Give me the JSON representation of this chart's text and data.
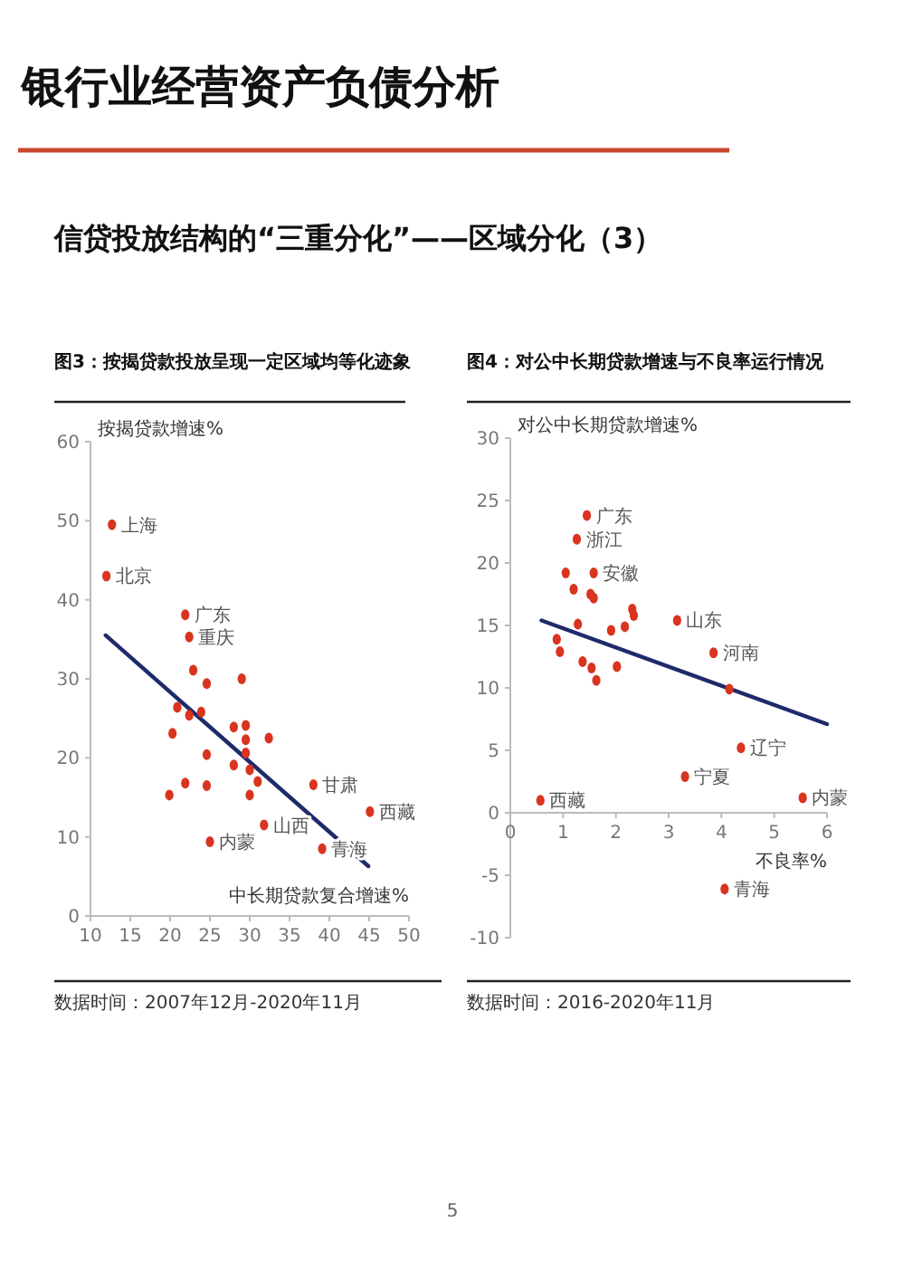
{
  "chart_data": [
    {
      "type": "scatter",
      "title": "图3：按揭贷款投放呈现一定区域均等化迹象",
      "xlabel": "中长期贷款复合增速%",
      "ylabel": "按揭贷款增速%",
      "xlim": [
        10,
        50
      ],
      "ylim": [
        0,
        60
      ],
      "xticks": [
        10,
        15,
        20,
        25,
        30,
        35,
        40,
        45,
        50
      ],
      "yticks": [
        0,
        10,
        20,
        30,
        40,
        50,
        60
      ],
      "series": [
        {
          "color": "#d9341f",
          "marker": "circle",
          "x": [
            12.7,
            12.0,
            21.9,
            22.4,
            22.9,
            29.0,
            24.6,
            20.9,
            22.4,
            23.9,
            28.0,
            29.5,
            29.5,
            32.4,
            20.3,
            24.6,
            29.5,
            28.0,
            30.0,
            31.0,
            21.9,
            24.6,
            19.9,
            30.0,
            38.0,
            45.1,
            31.8,
            25.0,
            39.1
          ],
          "values": [
            49.5,
            43.0,
            38.1,
            35.3,
            31.1,
            30.0,
            29.4,
            26.4,
            25.4,
            25.8,
            23.9,
            24.1,
            22.3,
            22.5,
            23.1,
            20.4,
            20.6,
            19.1,
            18.5,
            17.0,
            16.8,
            16.5,
            15.3,
            15.3,
            16.6,
            13.2,
            11.5,
            9.4,
            8.5
          ]
        },
        {
          "type": "line",
          "color": "#1f2a6b",
          "line_style": "solid",
          "x": [
            11.9,
            44.9
          ],
          "values": [
            35.5,
            6.3
          ]
        }
      ],
      "annotations": [
        "银行业经营资产负债分析",
        "信贷投放结构的“三重分化”——区域分化（3）",
        "数据时间：2007年12月-2020年11月",
        "5",
        {
          "text": "上海",
          "x": 12.7,
          "y": 49.5
        },
        {
          "text": "北京",
          "x": 12.0,
          "y": 43.0
        },
        {
          "text": "广东",
          "x": 21.9,
          "y": 38.1
        },
        {
          "text": "重庆",
          "x": 22.4,
          "y": 35.3
        },
        {
          "text": "甘肃",
          "x": 38.0,
          "y": 16.6
        },
        {
          "text": "西藏",
          "x": 45.1,
          "y": 13.2
        },
        {
          "text": "山西",
          "x": 31.8,
          "y": 11.5
        },
        {
          "text": "内蒙",
          "x": 25.0,
          "y": 9.4
        },
        {
          "text": "青海",
          "x": 39.1,
          "y": 8.5
        }
      ]
    },
    {
      "type": "scatter",
      "title": "图4：对公中长期贷款增速与不良率运行情况",
      "xlabel": "不良率%",
      "ylabel": "对公中长期贷款增速%",
      "xlim": [
        0,
        6
      ],
      "ylim": [
        -10,
        30
      ],
      "xticks": [
        0,
        1,
        2,
        3,
        4,
        5,
        6
      ],
      "yticks": [
        -10,
        -5,
        0,
        5,
        10,
        15,
        20,
        25,
        30
      ],
      "series": [
        {
          "color": "#d9341f",
          "marker": "circle",
          "x": [
            1.45,
            1.26,
            1.05,
            1.58,
            1.2,
            1.52,
            1.58,
            2.31,
            2.34,
            3.16,
            1.28,
            2.17,
            1.91,
            0.88,
            0.94,
            3.85,
            1.37,
            1.54,
            2.02,
            1.63,
            4.15,
            4.37,
            3.31,
            0.57,
            5.54,
            4.06
          ],
          "values": [
            23.8,
            21.9,
            19.2,
            19.2,
            17.9,
            17.5,
            17.2,
            16.3,
            15.8,
            15.4,
            15.1,
            14.9,
            14.6,
            13.9,
            12.9,
            12.8,
            12.1,
            11.6,
            11.7,
            10.6,
            9.9,
            5.2,
            2.9,
            1.0,
            1.2,
            -6.1
          ]
        },
        {
          "type": "line",
          "color": "#1f2a6b",
          "line_style": "solid",
          "x": [
            0.59,
            6.0
          ],
          "values": [
            15.4,
            7.1
          ]
        }
      ],
      "annotations": [
        "数据时间：2016-2020年11月",
        {
          "text": "广东",
          "x": 1.45,
          "y": 23.8
        },
        {
          "text": "浙江",
          "x": 1.26,
          "y": 21.9
        },
        {
          "text": "安徽",
          "x": 1.58,
          "y": 19.2
        },
        {
          "text": "山东",
          "x": 3.16,
          "y": 15.4
        },
        {
          "text": "河南",
          "x": 3.85,
          "y": 12.8
        },
        {
          "text": "辽宁",
          "x": 4.37,
          "y": 5.2
        },
        {
          "text": "宁夏",
          "x": 3.31,
          "y": 2.9
        },
        {
          "text": "西藏",
          "x": 0.57,
          "y": 1.0
        },
        {
          "text": "内蒙",
          "x": 5.54,
          "y": 1.2
        },
        {
          "text": "青海",
          "x": 4.06,
          "y": -6.1
        }
      ]
    }
  ]
}
